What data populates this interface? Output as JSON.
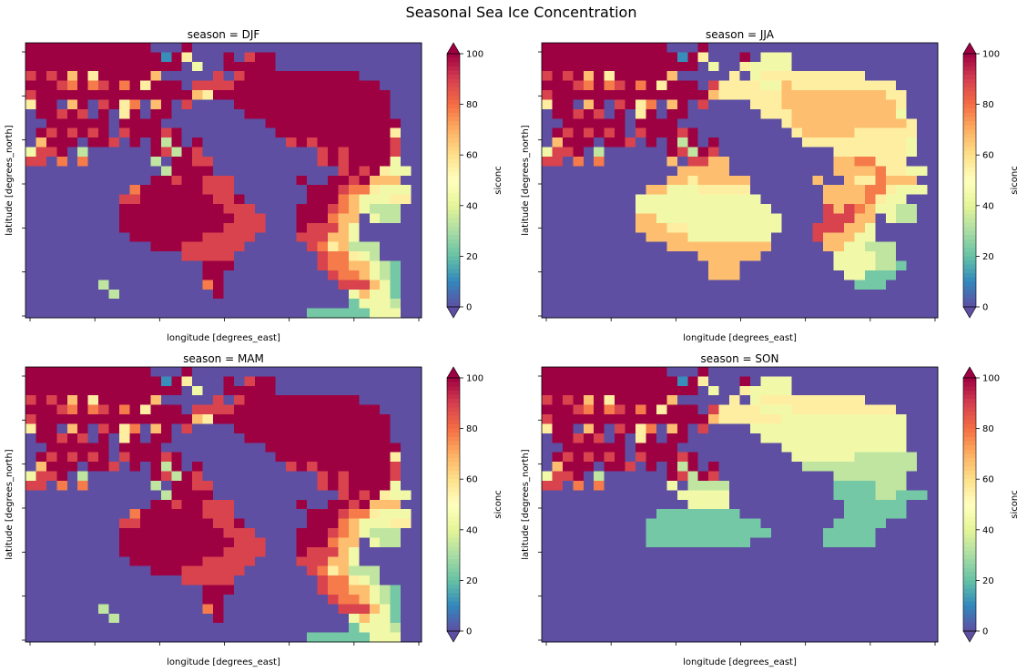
{
  "suptitle": "Seasonal Sea Ice Concentration",
  "chart_data": {
    "type": "heatmap",
    "title": "Seasonal Sea Ice Concentration",
    "colormap": "Spectral_r",
    "colorbar": {
      "label": "siconc",
      "ticks": [
        "0",
        "20",
        "40",
        "60",
        "80",
        "100"
      ],
      "range": [
        0,
        100
      ],
      "extend": "both"
    },
    "xlabel": "longitude [degrees_east]",
    "ylabel": "latitude [degrees_north]",
    "grid": false,
    "panels": [
      {
        "title": "season = DJF",
        "legend": "siconc",
        "rows": [
          "99999999999900090000000000000000000000",
          "99999999999991950009089900000000000000",
          "99999999999999904009999900000000000000",
          "89896959999960000080899999999999000000",
          "99987978979599908888999999999999990000",
          "89999999999999996599999999999999999000",
          "59906908957069080000999999999999999000",
          "09989809059099000000099999999999999000",
          "00999999099990000000000999999999999900",
          "09898989089998900000000099999999999500",
          "06999099809093909000000008989999999800",
          "48890300000098398000000000008989999800",
          "88070700000030998800000000008989999400",
          "00000000000003999900000000000089895440",
          "00000000000099899888000000900998966600",
          "00000000007999999888000000099987754440",
          "00000000088999999988900000099976444550",
          "00000000099999999998880000999876433300",
          "00000000099999999999888000999766043300",
          "00000000099999999998888000988864000000",
          "00000000009999999888880000888664000000",
          "00000000000099988888800000087563330000",
          "00000000000000088888000000008775430000",
          "00000000000000000999000000008776643200",
          "00000000000000000990000000000877643200",
          "00000003000000000790000000000088864200",
          "00000000300000000090000000000004644200",
          "00000000000000000000000000000002444300",
          "00000000000000000000000000022222244400"
        ]
      },
      {
        "title": "season = JJA",
        "legend": "siconc",
        "rows": [
          "99999999999900090000000000000000000000",
          "99999999999991950009044400000000000000",
          "99999999999999904005444400000000000000",
          "89896959999960000050455555555550000000",
          "99987978979599908555544655555555550000",
          "89999999999999996555555666666666655000",
          "59906908957069080000555666666666665000",
          "09989809059099000000055566666666664000",
          "00999999099990000000000566666666666500",
          "09898989089998900000000056666655555500",
          "06999099809093909000000005555555555400",
          "48890300000098398000000000005555555400",
          "88070700000060886600000000006677555000",
          "00000000000006666600000000006666755440",
          "00000000000066566666000000600655766600",
          "00000000006644455555000000066667754440",
          "00000000044444444444400000066667544000",
          "00000000044444444444440000086876443300",
          "00000000066444444444444000088866043300",
          "00000000066655444444444000888664000000",
          "00000000006666444444440000866644000000",
          "00000000000066666666660000066443330000",
          "00000000000000066666600000004444330000",
          "00000000000000006660000000004444332000",
          "00000000000000006660000000000442220000",
          "00000000000000000000000000000022200000",
          "00000000000000000000000000000000000000",
          "00000000000000000000000000000000000000",
          "00000000000000000000000000000000000000"
        ]
      },
      {
        "title": "season = MAM",
        "legend": "siconc",
        "rows": [
          "99999999999900090000000000000000000000",
          "99999999999991950009089900000000000000",
          "99999999999999904009999900000000000000",
          "89896959999960000080899999999999000000",
          "99987978979599908888999999999999990000",
          "89999999999999996599999999999999999000",
          "59906908957069080000999999999999999000",
          "09989809059099000000099999999999999000",
          "00999999099990000000000999999999999900",
          "09898989089998900000000099999999999500",
          "06999099809093909000000008989999999800",
          "48890300000098398000000000008989999800",
          "88070700000030998800000000008989999400",
          "00000000000003999900000000000089895440",
          "00000000000099899888000000900998966600",
          "00000000007999999888000000099987754440",
          "00000000088999999988900000099976444550",
          "00000000099999999998880000999876433300",
          "00000000099999999999888000999766043300",
          "00000000099999999998888000988864000000",
          "00000000009999999888880000888664000000",
          "00000000000099988888800000087563330000",
          "00000000000000088888000000008775430000",
          "00000000000000000999000000008776643200",
          "00000000000000000990000000000877643200",
          "00000003000000000790000000000088864200",
          "00000000300000000090000000000004644200",
          "00000000000000000000000000000002444300",
          "00000000000000000000000000022222244400"
        ]
      },
      {
        "title": "season = SON",
        "legend": "siconc",
        "rows": [
          "99999999999900090000000000000000000000",
          "99999999999991950009044400000000000000",
          "99999999999999904005444400000000000000",
          "89896959999960000050455555555550000000",
          "99987978979599908555544455555555550000",
          "89999999999999996555555444444444444000",
          "59906908957069080000444444444444444000",
          "09989809059099000000044444444444444000",
          "00999999099990000000000444444444444000",
          "09898989089998900000000044444433333300",
          "06999099809093909000000003333333333300",
          "48890300000098398000000000003333333000",
          "88070700000040333300000000002222333000",
          "00000000000004444400000000002222332220",
          "00000000000000444400000000000222222000",
          "00000000000222222220000000000222222000",
          "00000000002222222222200000002222200000",
          "00000000002222222222220000022222000000",
          "00000000002222222222000000022222000000",
          "00000000000000000000000000000000000000",
          "00000000000000000000000000000000000000",
          "00000000000000000000000000000000000000",
          "00000000000000000000000000000000000000",
          "00000000000000000000000000000000000000",
          "00000000000000000000000000000000000000",
          "00000000000000000000000000000000000000",
          "00000000000000000000000000000000000000",
          "00000000000000000000000000000000000000",
          "00000000000000000000000000000000000000"
        ]
      }
    ]
  }
}
